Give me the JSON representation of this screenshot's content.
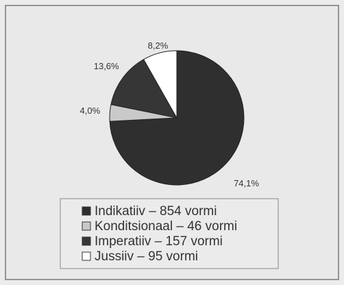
{
  "chart_data": {
    "type": "pie",
    "categories": [
      "Indikatiiv – 854 vormi",
      "Konditsionaal – 46 vormi",
      "Imperatiiv – 157 vormi",
      "Jussiiv – 95 vormi"
    ],
    "values": [
      74.1,
      4.0,
      13.6,
      8.2
    ],
    "value_labels": [
      "74,1%",
      "4,0%",
      "13,6%",
      "8,2%"
    ],
    "colors": [
      "#2f2f2f",
      "#c9c9c9",
      "#363636",
      "#ffffff"
    ],
    "legend": "bottom"
  }
}
